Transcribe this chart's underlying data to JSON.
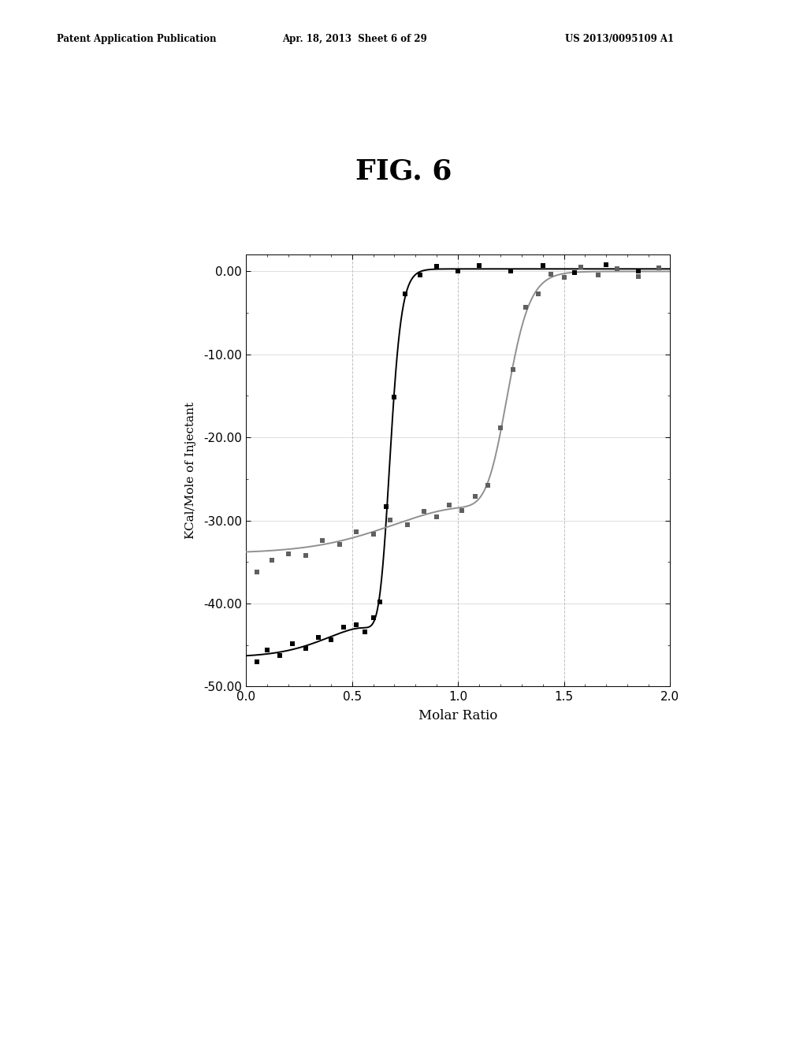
{
  "title": "FIG. 6",
  "xlabel": "Molar Ratio",
  "ylabel": "KCal/Mole of Injectant",
  "xlim": [
    0.0,
    2.0
  ],
  "ylim": [
    -50.0,
    2.0
  ],
  "yticks": [
    0.0,
    -10.0,
    -20.0,
    -30.0,
    -40.0,
    -50.0
  ],
  "xticks": [
    0.0,
    0.5,
    1.0,
    1.5,
    2.0
  ],
  "vertical_lines": [
    0.5,
    1.0,
    1.5
  ],
  "background_color": "#ffffff",
  "curve1_color": "#000000",
  "curve2_color": "#808080",
  "header_left": "Patent Application Publication",
  "header_center": "Apr. 18, 2013  Sheet 6 of 29",
  "header_right": "US 2013/0095109 A1",
  "header_fontsize": 8.5,
  "title_fontsize": 26,
  "axis_fontsize": 11,
  "label_fontsize": 12
}
